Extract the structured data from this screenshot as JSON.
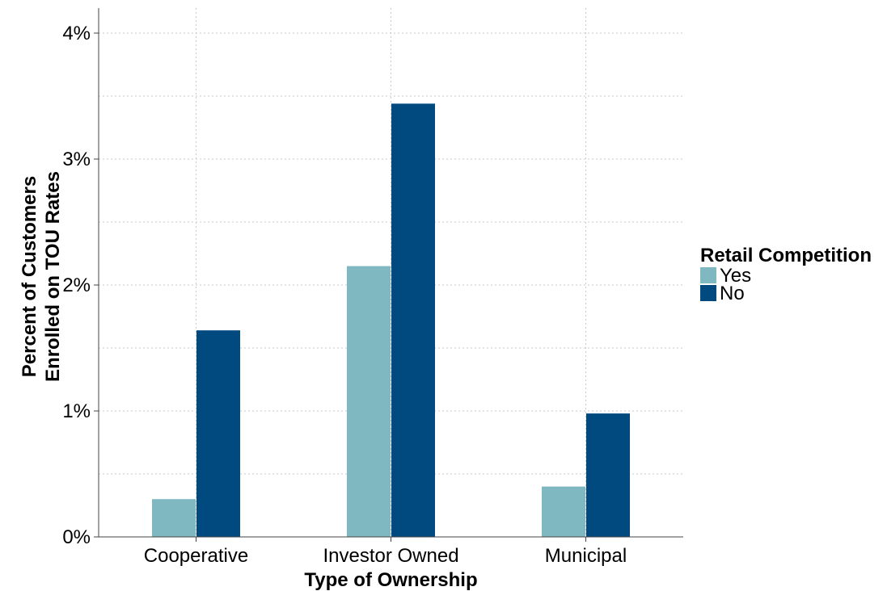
{
  "chart_data": {
    "type": "bar",
    "categories": [
      "Cooperative",
      "Investor Owned",
      "Municipal"
    ],
    "series": [
      {
        "name": "Yes",
        "values": [
          0.3,
          2.15,
          0.4
        ],
        "color": "#7fb8c0"
      },
      {
        "name": "No",
        "values": [
          1.64,
          3.44,
          0.98
        ],
        "color": "#004a80"
      }
    ],
    "xlabel": "Type of Ownership",
    "ylabel_lines": [
      "Percent of Customers",
      "Enrolled on TOU Rates"
    ],
    "ylim": [
      0,
      4.2
    ],
    "y_ticks": [
      0,
      1,
      2,
      3,
      4
    ],
    "y_tick_labels": [
      "0%",
      "1%",
      "2%",
      "3%",
      "4%"
    ],
    "grid": true,
    "legend": {
      "title": "Retail Competition",
      "placement": "right"
    }
  }
}
